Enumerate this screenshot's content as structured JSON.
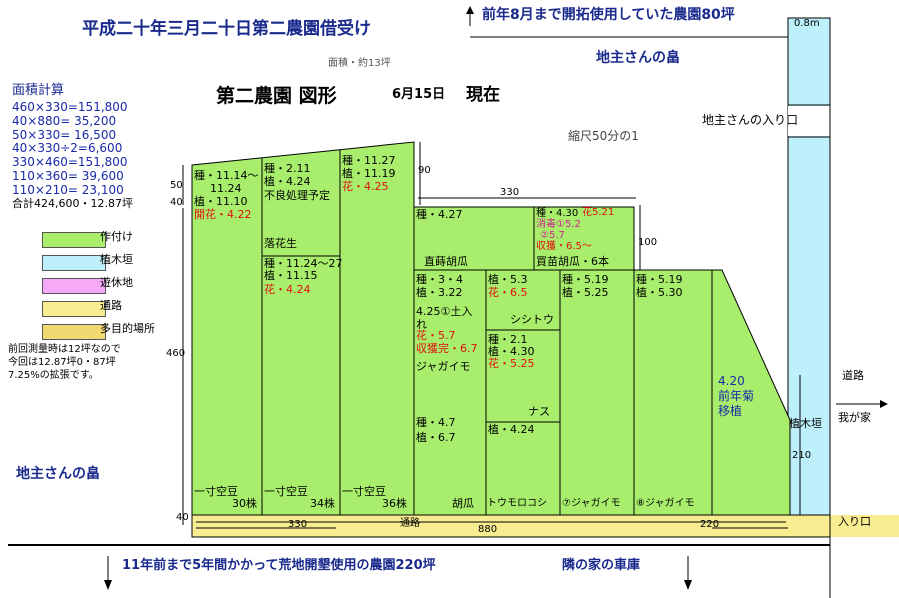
{
  "header": {
    "title": "平成二十年三月二十日第二農園借受け",
    "north_note": "前年8月まで開拓使用していた農園80坪",
    "width_note": "0.8m",
    "area_small": "面積・約13坪",
    "diagram_title": "第二農園 図形",
    "date_label": "6月15日",
    "now_label": "現在",
    "scale": "縮尺50分の1"
  },
  "area_calc": {
    "title": "面積計算",
    "lines": [
      "460×330=151,800",
      "40×880=  35,200",
      "50×330=  16,500",
      "40×330÷2=6,600",
      "330×460=151,800",
      "110×360= 39,600",
      "110×210= 23,100",
      "合計424,600・12.87坪"
    ]
  },
  "legend": [
    {
      "label": "作付け",
      "color": "#a8ee6c"
    },
    {
      "label": "植木垣",
      "color": "#bdf0fa"
    },
    {
      "label": "遊休地",
      "color": "#f7a8f7"
    },
    {
      "label": "通路",
      "color": "#f8ec90"
    },
    {
      "label": "多目的場所",
      "color": "#f2d870"
    }
  ],
  "note": [
    "前回測量時は12坪なので",
    "今回は12.87坪0・87坪",
    "7.25%の拡張です。"
  ],
  "colors": {
    "crop": "#a8ee6c",
    "hedge": "#bdf0fa",
    "path": "#f8ec90",
    "line": "#000000"
  },
  "surroundings": {
    "landlord_top": "地主さんの畠",
    "landlord_left": "地主さんの畠",
    "landlord_entrance": "地主さんの入り口",
    "road": "道路",
    "to_home": "我が家",
    "hedge": "植木垣",
    "entrance": "入り口",
    "south_note": "11年前まで5年間かかって荒地開墾使用の農園220坪",
    "neighbor": "隣の家の車庫"
  },
  "dimensions": {
    "d50": "50",
    "d40a": "40",
    "d460": "460",
    "d40b": "40",
    "d90": "90",
    "d330top": "330",
    "d100": "100",
    "d210": "210",
    "d330bot": "330",
    "d880": "880",
    "d220": "220",
    "path_label": "通路"
  },
  "plots": {
    "p1": {
      "l1": "種・11.14～",
      "l2": "11.24",
      "l3": "植・11.10",
      "l4": "開花・4.22",
      "crop": "一寸空豆",
      "count": "30株"
    },
    "p2": {
      "l1": "種・2.11",
      "l2": "植・4.24",
      "l3": "不良処理予定",
      "name": "落花生",
      "l4": "種・11.24～27",
      "l5": "植・11.15",
      "l6": "花・4.24",
      "crop": "一寸空豆",
      "count": "34株"
    },
    "p3": {
      "l1": "種・11.27",
      "l2": "植・11.19",
      "l3": "花・4.25",
      "crop": "一寸空豆",
      "count": "36株"
    },
    "p4": {
      "l1": "種・4.27",
      "name": "直蒔胡瓜"
    },
    "p5": {
      "l1": "種・4.30",
      "l1r": "花5.21",
      "l2": "消毒①5.2",
      "l3": "②5.7",
      "l4": "収獲・6.5～",
      "name": "買苗胡瓜・6本"
    },
    "p6": {
      "l1": "種・3・4",
      "l2": "植・3.22",
      "l3": "4.25①土入",
      "l3b": "れ",
      "l4": "花・5.7",
      "l5": "収獲完・6.7",
      "name": "ジャガイモ",
      "l6": "種・4.7",
      "l7": "植・6.7",
      "crop": "胡瓜"
    },
    "p7": {
      "l1": "植・5.3",
      "l2": "花・6.5",
      "name": "シシトウ"
    },
    "p8": {
      "l1": "種・2.1",
      "l2": "植・4.30",
      "l3": "花・5.25",
      "name": "ナス",
      "l4": "植・4.24",
      "crop": "トウモロコシ"
    },
    "p9": {
      "l1": "種・5.19",
      "l2": "植・5.25",
      "crop": "⑦ジャガイモ"
    },
    "p10": {
      "l1": "種・5.19",
      "l2": "植・5.30",
      "crop": "⑧ジャガイモ"
    },
    "p11": {
      "l1": "4.20",
      "l2": "前年菊",
      "l3": "移植"
    }
  }
}
